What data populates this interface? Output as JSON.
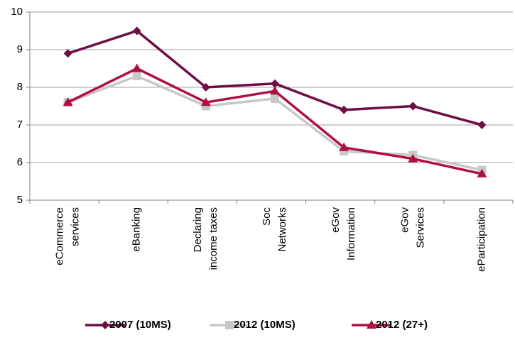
{
  "chart_data": {
    "type": "line",
    "categories": [
      "eCommerce\nservices",
      "eBanking",
      "Declaring\nincome taxes",
      "Soc\nNetworks",
      "eGov\nInformation",
      "eGov\nServices",
      "eParticipation"
    ],
    "series": [
      {
        "name": "2007 (10MS)",
        "color": "#6d0f45",
        "marker": "diamond",
        "values": [
          8.9,
          9.5,
          8.0,
          8.1,
          7.4,
          7.5,
          7.0
        ]
      },
      {
        "name": "2012 (10MS)",
        "color": "#c8c8c8",
        "marker": "square",
        "values": [
          7.6,
          8.3,
          7.5,
          7.7,
          6.3,
          6.2,
          5.8
        ]
      },
      {
        "name": "2012 (27+)",
        "color": "#b0103f",
        "marker": "triangle",
        "values": [
          7.6,
          8.5,
          7.6,
          7.9,
          6.4,
          6.1,
          5.7
        ]
      }
    ],
    "ylim": [
      5,
      10
    ],
    "yticks": [
      5,
      6,
      7,
      8,
      9,
      10
    ],
    "grid": true,
    "legend": "bottom"
  }
}
